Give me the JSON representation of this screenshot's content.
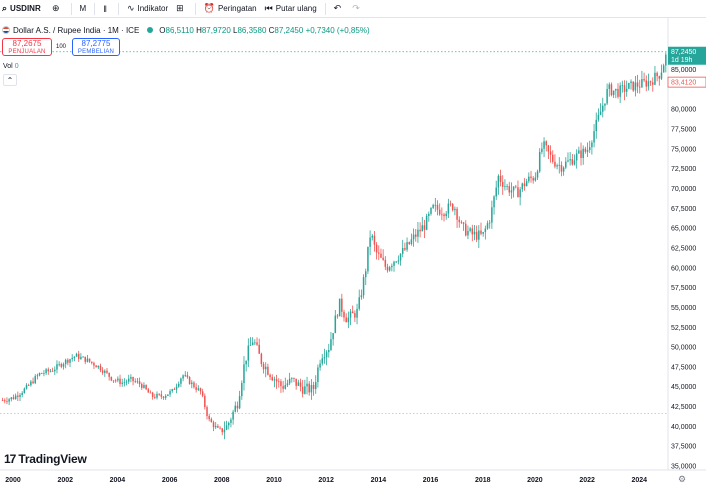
{
  "toolbar": {
    "symbol": "USDINR",
    "interval": "M",
    "indicators_label": "Indikator",
    "alerts_label": "Peringatan",
    "replay_label": "Putar ulang"
  },
  "legend": {
    "title": "Dollar A.S. / Rupee India · 1M · ICE",
    "open": "86,5110",
    "high": "87,9720",
    "low": "86,3580",
    "close": "87,2450",
    "change": "+0,7340 (+0,85%)"
  },
  "trade": {
    "sell_price": "87,2675",
    "sell_label": "PENJUALAN",
    "spread": "100",
    "buy_price": "87,2775",
    "buy_label": "PEMBELIAN"
  },
  "volume": {
    "label": "Vol",
    "value": "0"
  },
  "price_tags": {
    "last_price": "87,2450",
    "countdown": "1d 19h",
    "marker_price": "83,4120"
  },
  "branding": {
    "name": "TradingView"
  },
  "colors": {
    "up": "#26a69a",
    "down": "#ef5350",
    "last_line": "#26a69a",
    "marker_line": "#26a69a"
  },
  "chart_data": {
    "type": "candlestick",
    "title": "Dollar A.S. / Rupee India · 1M · ICE",
    "ylabel": "",
    "xlabel": "",
    "ylim": [
      34.5,
      91.5
    ],
    "y_ticks": [
      "35,0000",
      "37,5000",
      "40,0000",
      "42,5000",
      "45,0000",
      "47,5000",
      "50,0000",
      "52,5000",
      "55,0000",
      "57,5000",
      "60,0000",
      "62,5000",
      "65,0000",
      "67,5000",
      "70,0000",
      "72,5000",
      "75,0000",
      "77,5000",
      "80,0000",
      "85,0000"
    ],
    "x_ticks": [
      "2000",
      "2002",
      "2004",
      "2006",
      "2008",
      "2010",
      "2012",
      "2014",
      "2016",
      "2018",
      "2020",
      "2022",
      "2024"
    ],
    "xlim": [
      1999.5,
      2025.1
    ],
    "reference_lines": [
      {
        "value": 87.245,
        "label": "87,2450"
      },
      {
        "value": 41.6,
        "label": ""
      }
    ],
    "close_path": [
      [
        1999.6,
        43.3
      ],
      [
        2000.0,
        43.6
      ],
      [
        2000.5,
        44.8
      ],
      [
        2001.0,
        46.6
      ],
      [
        2001.5,
        47.1
      ],
      [
        2002.0,
        48.2
      ],
      [
        2002.4,
        48.9
      ],
      [
        2002.8,
        48.4
      ],
      [
        2003.3,
        47.5
      ],
      [
        2003.8,
        46.0
      ],
      [
        2004.2,
        45.5
      ],
      [
        2004.5,
        45.9
      ],
      [
        2004.9,
        45.3
      ],
      [
        2005.3,
        43.8
      ],
      [
        2005.7,
        43.8
      ],
      [
        2006.1,
        44.4
      ],
      [
        2006.5,
        46.5
      ],
      [
        2006.9,
        45.2
      ],
      [
        2007.2,
        44.3
      ],
      [
        2007.5,
        40.8
      ],
      [
        2007.9,
        39.4
      ],
      [
        2008.2,
        40.0
      ],
      [
        2008.6,
        43.0
      ],
      [
        2008.9,
        48.5
      ],
      [
        2009.2,
        51.0
      ],
      [
        2009.5,
        48.3
      ],
      [
        2009.9,
        46.5
      ],
      [
        2010.3,
        45.0
      ],
      [
        2010.7,
        45.8
      ],
      [
        2011.1,
        44.8
      ],
      [
        2011.5,
        44.6
      ],
      [
        2011.8,
        49.0
      ],
      [
        2012.1,
        50.0
      ],
      [
        2012.5,
        55.5
      ],
      [
        2012.8,
        53.5
      ],
      [
        2013.2,
        54.5
      ],
      [
        2013.5,
        59.5
      ],
      [
        2013.7,
        64.5
      ],
      [
        2013.9,
        62.0
      ],
      [
        2014.3,
        60.0
      ],
      [
        2014.6,
        61.0
      ],
      [
        2015.0,
        62.2
      ],
      [
        2015.4,
        64.0
      ],
      [
        2015.8,
        65.5
      ],
      [
        2016.1,
        67.5
      ],
      [
        2016.5,
        67.2
      ],
      [
        2016.9,
        67.9
      ],
      [
        2017.2,
        65.0
      ],
      [
        2017.6,
        64.2
      ],
      [
        2018.0,
        64.0
      ],
      [
        2018.3,
        66.5
      ],
      [
        2018.6,
        71.5
      ],
      [
        2018.9,
        70.2
      ],
      [
        2019.3,
        69.4
      ],
      [
        2019.7,
        71.0
      ],
      [
        2020.0,
        71.5
      ],
      [
        2020.3,
        75.5
      ],
      [
        2020.7,
        73.5
      ],
      [
        2021.0,
        72.8
      ],
      [
        2021.3,
        73.4
      ],
      [
        2021.7,
        74.3
      ],
      [
        2022.0,
        74.8
      ],
      [
        2022.4,
        78.5
      ],
      [
        2022.8,
        82.5
      ],
      [
        2023.2,
        82.2
      ],
      [
        2023.6,
        82.8
      ],
      [
        2024.0,
        83.1
      ],
      [
        2024.4,
        83.5
      ],
      [
        2024.8,
        84.5
      ],
      [
        2025.08,
        87.245
      ]
    ]
  }
}
